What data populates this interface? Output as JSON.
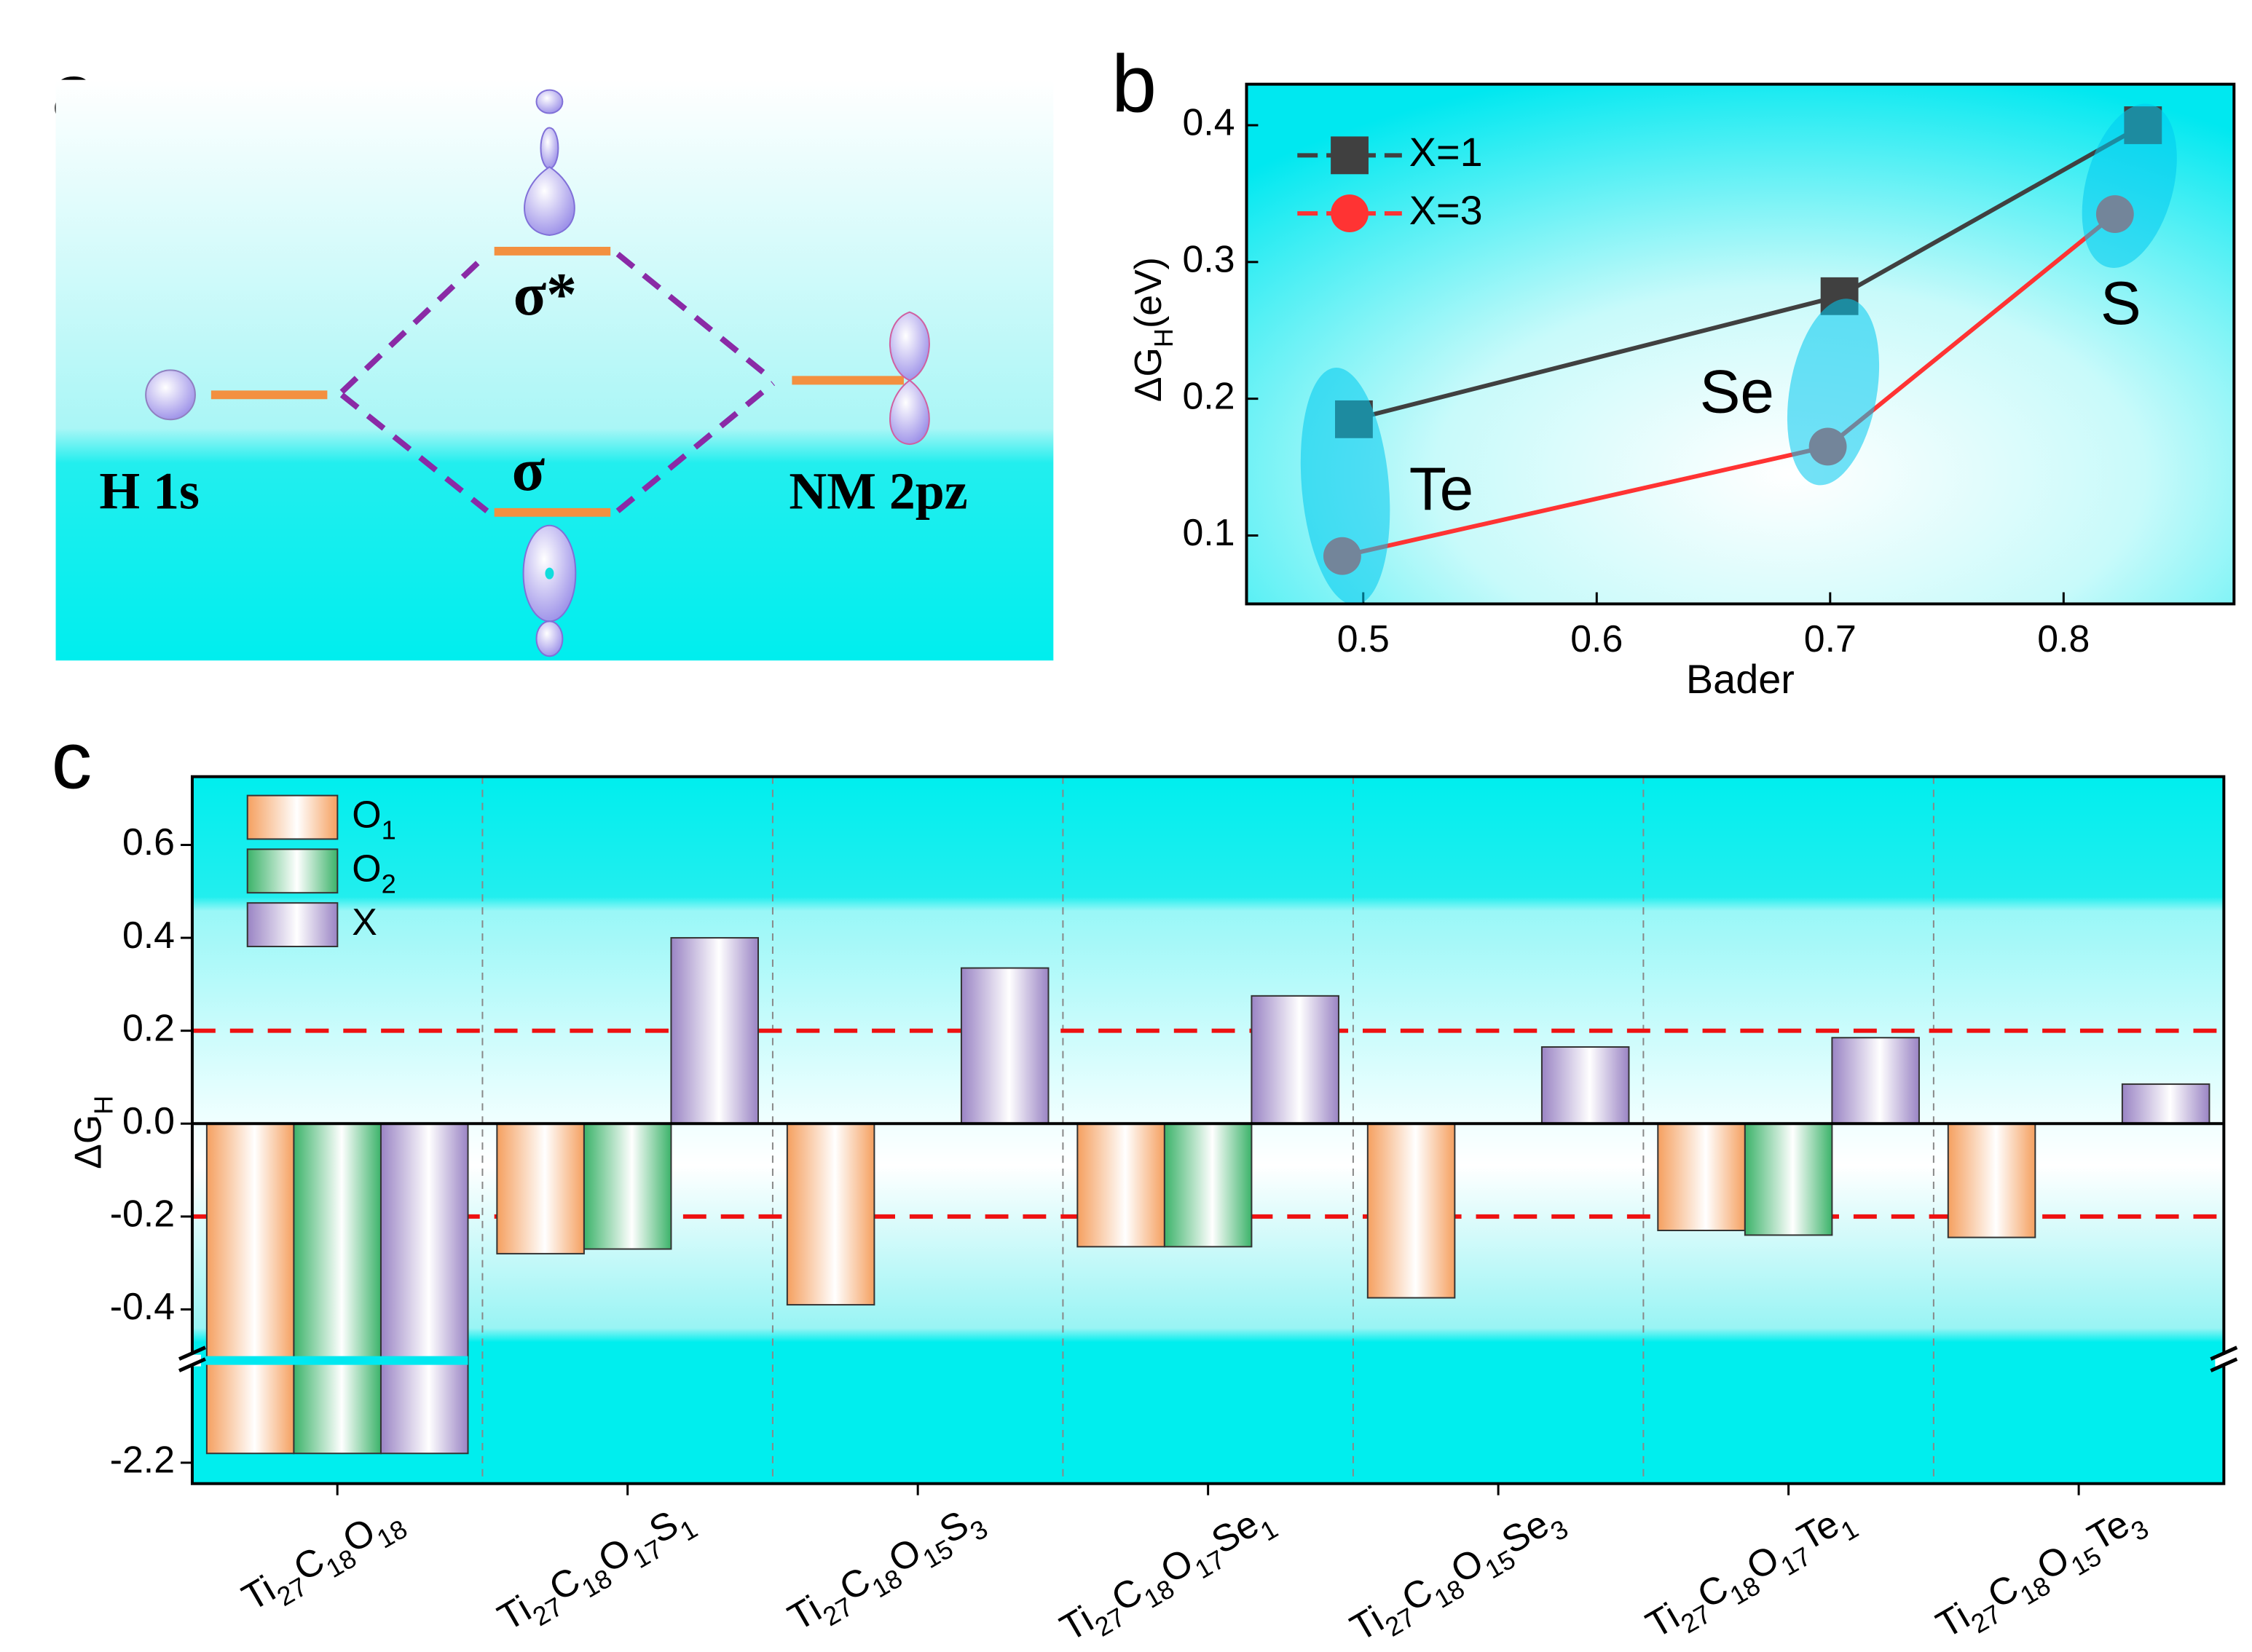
{
  "panel_a": {
    "label": "a",
    "left_label": "H 1s",
    "antibonding": "σ*",
    "bonding": "σ",
    "right_label": "NM 2pz"
  },
  "chart_data": [
    {
      "type": "line",
      "panel": "b",
      "xlabel": "Bader",
      "ylabel": [
        {
          "text": "ΔG"
        },
        {
          "text": "H",
          "sub": true
        },
        {
          "text": "(eV)"
        }
      ],
      "xlim": [
        0.45,
        0.873
      ],
      "xticks": [
        0.5,
        0.6,
        0.7,
        0.8
      ],
      "ylim": [
        0.05,
        0.43
      ],
      "yticks": [
        0.1,
        0.2,
        0.3,
        0.4
      ],
      "series": [
        {
          "name": "X=1",
          "color": "#404040",
          "marker": "square",
          "x": [
            0.496,
            0.704,
            0.834
          ],
          "values": [
            0.185,
            0.275,
            0.4
          ]
        },
        {
          "name": "X=3",
          "color": "#ff3333",
          "marker": "circle",
          "x": [
            0.491,
            0.699,
            0.822
          ],
          "values": [
            0.085,
            0.165,
            0.335
          ]
        }
      ],
      "annotations": [
        "Te",
        "Se",
        "S"
      ]
    },
    {
      "type": "bar",
      "panel": "c",
      "ylabel": [
        {
          "text": "ΔG"
        },
        {
          "text": "H",
          "sub": true
        }
      ],
      "categories": [
        "Ti27C18O18",
        "Ti27C18O17S1",
        "Ti27C18O15S3",
        "Ti27C18O17Se1",
        "Ti27C18O15Se3",
        "Ti27C18O17Te1",
        "Ti27C18O15Te3"
      ],
      "series": [
        {
          "name": "O1",
          "color": "#f5a060",
          "values": [
            -2.18,
            -0.28,
            -0.39,
            -0.265,
            -0.375,
            -0.23,
            -0.245
          ]
        },
        {
          "name": "O2",
          "color": "#3cb36a",
          "values": [
            -2.18,
            -0.27,
            null,
            -0.265,
            null,
            -0.24,
            null
          ]
        },
        {
          "name": "X",
          "color": "#9a84c4",
          "values": [
            -2.18,
            0.4,
            0.335,
            0.275,
            0.165,
            0.185,
            0.085
          ]
        }
      ],
      "ylim": [
        -2.245,
        0.747
      ],
      "ybreak": [
        -1.98,
        -0.51
      ],
      "yticks": [
        0.6,
        0.4,
        0.2,
        {
          "value": 0,
          "label": "0.0"
        },
        -0.2,
        -0.4,
        -2.2
      ],
      "reference_lines": [
        0.2,
        -0.2
      ],
      "reference_color": "#ee1111"
    }
  ]
}
